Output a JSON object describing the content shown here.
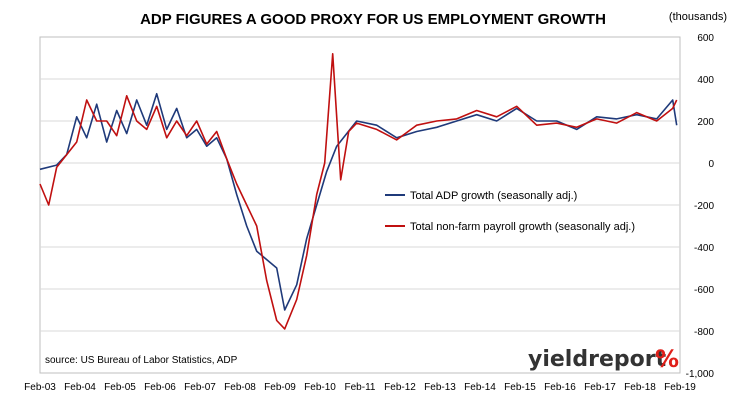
{
  "chart_data": {
    "type": "line",
    "title": "ADP FIGURES A GOOD PROXY FOR US EMPLOYMENT GROWTH",
    "units_label": "(thousands)",
    "ylim": [
      -1000,
      600
    ],
    "yticks": [
      -1000,
      -800,
      -600,
      -400,
      -200,
      0,
      200,
      400,
      600
    ],
    "x_range": [
      2003.083,
      2019.083
    ],
    "xticks": [
      {
        "label": "Feb-03",
        "pos": 2003.083
      },
      {
        "label": "Feb-04",
        "pos": 2004.083
      },
      {
        "label": "Feb-05",
        "pos": 2005.083
      },
      {
        "label": "Feb-06",
        "pos": 2006.083
      },
      {
        "label": "Feb-07",
        "pos": 2007.083
      },
      {
        "label": "Feb-08",
        "pos": 2008.083
      },
      {
        "label": "Feb-09",
        "pos": 2009.083
      },
      {
        "label": "Feb-10",
        "pos": 2010.083
      },
      {
        "label": "Feb-11",
        "pos": 2011.083
      },
      {
        "label": "Feb-12",
        "pos": 2012.083
      },
      {
        "label": "Feb-13",
        "pos": 2013.083
      },
      {
        "label": "Feb-14",
        "pos": 2014.083
      },
      {
        "label": "Feb-15",
        "pos": 2015.083
      },
      {
        "label": "Feb-16",
        "pos": 2016.083
      },
      {
        "label": "Feb-17",
        "pos": 2017.083
      },
      {
        "label": "Feb-18",
        "pos": 2018.083
      },
      {
        "label": "Feb-19",
        "pos": 2019.083
      }
    ],
    "grid": "horizontal",
    "legend_position": "center",
    "series": [
      {
        "name": "Total ADP growth (seasonally adj.)",
        "color": "#1f3a7a",
        "x": [
          2003.083,
          2003.5,
          2003.75,
          2004.0,
          2004.25,
          2004.5,
          2004.75,
          2005.0,
          2005.25,
          2005.5,
          2005.75,
          2006.0,
          2006.25,
          2006.5,
          2006.75,
          2007.0,
          2007.25,
          2007.5,
          2007.75,
          2008.0,
          2008.25,
          2008.5,
          2008.75,
          2009.0,
          2009.2,
          2009.5,
          2009.75,
          2010.0,
          2010.25,
          2010.5,
          2010.75,
          2011.0,
          2011.5,
          2012.0,
          2012.5,
          2013.0,
          2013.5,
          2014.0,
          2014.5,
          2015.0,
          2015.5,
          2016.0,
          2016.5,
          2017.0,
          2017.5,
          2018.0,
          2018.5,
          2018.9,
          2019.0
        ],
        "values": [
          -30,
          -10,
          40,
          220,
          120,
          280,
          100,
          250,
          140,
          300,
          180,
          330,
          160,
          260,
          120,
          160,
          80,
          120,
          20,
          -150,
          -300,
          -420,
          -460,
          -500,
          -700,
          -580,
          -360,
          -200,
          -40,
          80,
          140,
          200,
          180,
          120,
          150,
          170,
          200,
          230,
          200,
          260,
          200,
          200,
          160,
          220,
          210,
          230,
          210,
          300,
          180
        ]
      },
      {
        "name": "Total non-farm payroll growth (seasonally adj.)",
        "color": "#c01010",
        "x": [
          2003.083,
          2003.3,
          2003.5,
          2003.75,
          2004.0,
          2004.25,
          2004.5,
          2004.75,
          2005.0,
          2005.25,
          2005.5,
          2005.75,
          2006.0,
          2006.25,
          2006.5,
          2006.75,
          2007.0,
          2007.25,
          2007.5,
          2007.75,
          2008.0,
          2008.25,
          2008.5,
          2008.75,
          2009.0,
          2009.2,
          2009.5,
          2009.75,
          2010.0,
          2010.2,
          2010.4,
          2010.6,
          2010.8,
          2011.0,
          2011.5,
          2012.0,
          2012.5,
          2013.0,
          2013.5,
          2014.0,
          2014.5,
          2015.0,
          2015.5,
          2016.0,
          2016.5,
          2017.0,
          2017.5,
          2018.0,
          2018.5,
          2018.9,
          2019.0
        ],
        "values": [
          -100,
          -200,
          -20,
          40,
          100,
          300,
          200,
          200,
          130,
          320,
          200,
          160,
          270,
          120,
          200,
          130,
          200,
          90,
          150,
          20,
          -100,
          -200,
          -300,
          -560,
          -750,
          -790,
          -650,
          -440,
          -150,
          0,
          520,
          -80,
          150,
          190,
          160,
          110,
          180,
          200,
          210,
          250,
          220,
          270,
          180,
          190,
          170,
          210,
          190,
          240,
          200,
          260,
          300
        ]
      }
    ],
    "source": "source: US Bureau of Labor Statistics, ADP",
    "logo": {
      "text": "yieldreport",
      "symbol": "%"
    }
  }
}
